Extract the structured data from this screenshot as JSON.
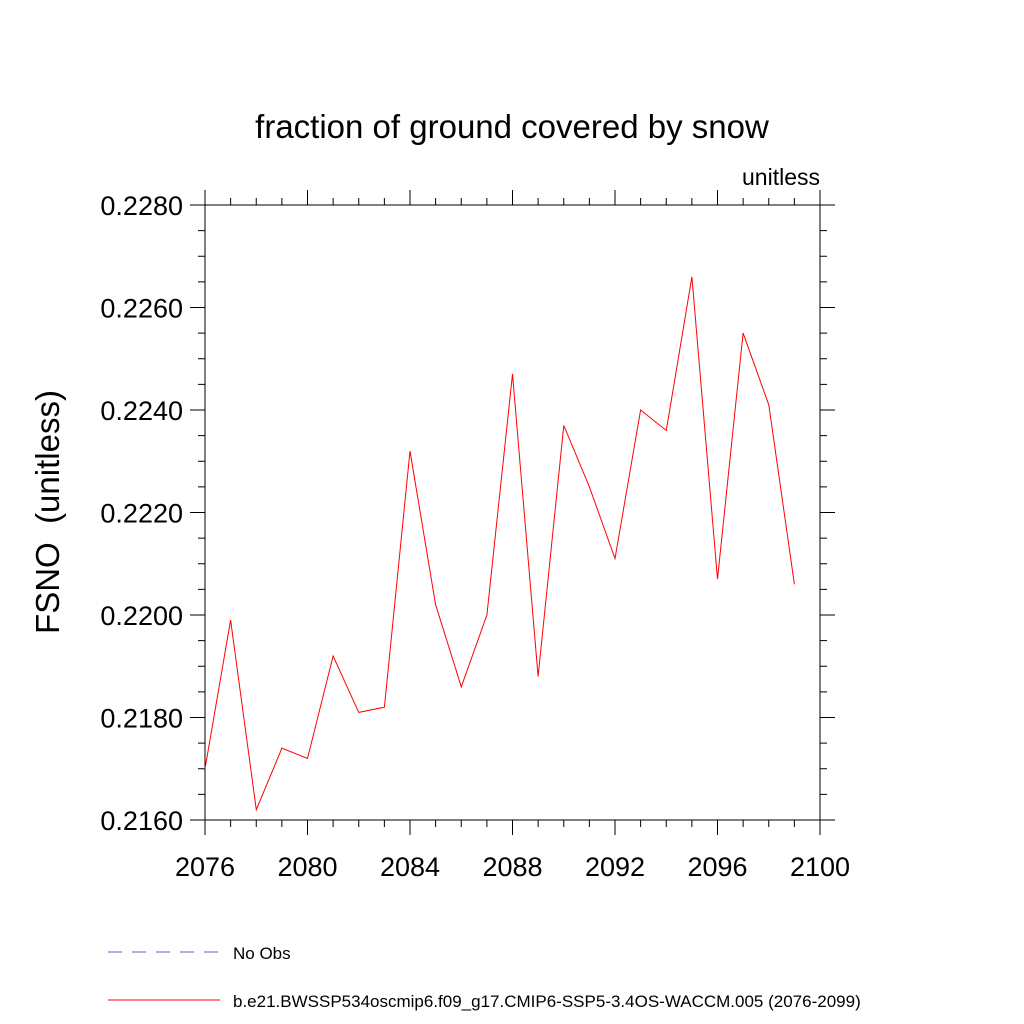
{
  "chart_data": {
    "type": "line",
    "title": "fraction of ground covered by snow",
    "units_label": "unitless",
    "ylabel": "FSNO  (unitless)",
    "xlabel": "",
    "xlim": [
      2076,
      2100
    ],
    "ylim": [
      0.216,
      0.228
    ],
    "x_ticks": [
      2076,
      2080,
      2084,
      2088,
      2092,
      2096,
      2100
    ],
    "x_tick_labels": [
      "2076",
      "2080",
      "2084",
      "2088",
      "2092",
      "2096",
      "2100"
    ],
    "y_ticks": [
      0.216,
      0.218,
      0.22,
      0.222,
      0.224,
      0.226,
      0.228
    ],
    "y_tick_labels": [
      "0.2160",
      "0.2180",
      "0.2200",
      "0.2220",
      "0.2240",
      "0.2260",
      "0.2280"
    ],
    "grid": false,
    "series": [
      {
        "name": "b.e21.BWSSP534oscmip6.f09_g17.CMIP6-SSP5-3.4OS-WACCM.005 (2076-2099)",
        "color": "#ff0000",
        "style": "solid",
        "x": [
          2076,
          2077,
          2078,
          2079,
          2080,
          2081,
          2082,
          2083,
          2084,
          2085,
          2086,
          2087,
          2088,
          2089,
          2090,
          2091,
          2092,
          2093,
          2094,
          2095,
          2096,
          2097,
          2098,
          2099
        ],
        "values": [
          0.217,
          0.2199,
          0.2162,
          0.2174,
          0.2172,
          0.2192,
          0.2181,
          0.2182,
          0.2232,
          0.2202,
          0.2186,
          0.22,
          0.2247,
          0.2188,
          0.2237,
          0.2225,
          0.2211,
          0.224,
          0.2236,
          0.2266,
          0.2207,
          0.2255,
          0.2241,
          0.2206
        ]
      }
    ],
    "legend": [
      {
        "label": "No Obs",
        "color": "#6a5acd",
        "style": "dashed"
      },
      {
        "label": "b.e21.BWSSP534oscmip6.f09_g17.CMIP6-SSP5-3.4OS-WACCM.005 (2076-2099)",
        "color": "#ff0000",
        "style": "solid"
      }
    ],
    "legend_position": "bottom-left"
  }
}
